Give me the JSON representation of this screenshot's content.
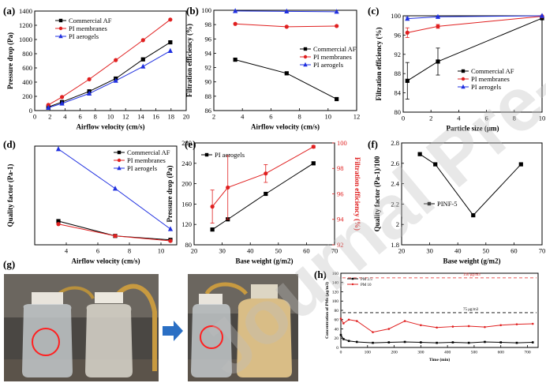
{
  "watermark": {
    "text": "Journal Pre-proof"
  },
  "chart_data": [
    {
      "panel": "a",
      "type": "line",
      "panel_label": "(a)",
      "xlabel": "Airflow velocity (cm/s)",
      "ylabel": "Pressure drop (Pa)",
      "xlim": [
        0,
        20
      ],
      "ylim": [
        0,
        1400
      ],
      "xticks": [
        0,
        2,
        4,
        6,
        8,
        10,
        12,
        14,
        16,
        18,
        20
      ],
      "yticks": [
        0,
        200,
        400,
        600,
        800,
        1000,
        1200,
        1400
      ],
      "legend_position": "top-left",
      "series": [
        {
          "name": "Commercial AF",
          "color": "#000000",
          "marker": "square",
          "x": [
            1.8,
            3.6,
            7.2,
            10.7,
            14.3,
            17.9
          ],
          "y": [
            50,
            120,
            270,
            450,
            720,
            960
          ]
        },
        {
          "name": "PI membranes",
          "color": "#e02020",
          "marker": "circle",
          "x": [
            1.8,
            3.6,
            7.2,
            10.7,
            14.3,
            17.9
          ],
          "y": [
            80,
            190,
            440,
            710,
            990,
            1280
          ]
        },
        {
          "name": "PI aerogels",
          "color": "#2030e0",
          "marker": "triangle",
          "x": [
            1.8,
            3.6,
            7.2,
            10.7,
            14.3,
            17.9
          ],
          "y": [
            40,
            100,
            240,
            420,
            620,
            840
          ]
        }
      ]
    },
    {
      "panel": "b",
      "type": "line",
      "panel_label": "(b)",
      "xlabel": "Airflow velocity (cm/s)",
      "ylabel": "Filtration efficiency (%)",
      "xlim": [
        2,
        12
      ],
      "ylim": [
        86,
        100
      ],
      "xticks": [
        2,
        4,
        6,
        8,
        10,
        12
      ],
      "yticks": [
        86,
        88,
        90,
        92,
        94,
        96,
        98,
        100
      ],
      "legend_position": "right",
      "series": [
        {
          "name": "Commercial AF",
          "color": "#000000",
          "marker": "square",
          "x": [
            3.5,
            7.1,
            10.6
          ],
          "y": [
            93.1,
            91.2,
            87.6
          ]
        },
        {
          "name": "PI membranes",
          "color": "#e02020",
          "marker": "circle",
          "x": [
            3.5,
            7.1,
            10.6
          ],
          "y": [
            98.1,
            97.7,
            97.8
          ]
        },
        {
          "name": "PI aerogels",
          "color": "#2030e0",
          "marker": "triangle",
          "x": [
            3.5,
            7.1,
            10.6
          ],
          "y": [
            99.9,
            99.85,
            99.8
          ]
        }
      ]
    },
    {
      "panel": "c",
      "type": "line",
      "panel_label": "(c)",
      "xlabel": "Particle size (μm)",
      "ylabel": "Filtration efficiency (%)",
      "xlim": [
        0,
        10
      ],
      "ylim": [
        80,
        100
      ],
      "xticks": [
        0,
        2,
        4,
        6,
        8,
        10
      ],
      "yticks": [
        80,
        84,
        88,
        92,
        96,
        100
      ],
      "legend_position": "right",
      "series": [
        {
          "name": "Commercial AF",
          "color": "#000000",
          "marker": "square",
          "x": [
            0.3,
            2.5,
            10
          ],
          "y": [
            86.5,
            90.5,
            99.5
          ],
          "err": [
            3.8,
            2.8,
            0.3
          ]
        },
        {
          "name": "PI membranes",
          "color": "#e02020",
          "marker": "circle",
          "x": [
            0.3,
            2.5,
            10
          ],
          "y": [
            96.5,
            97.8,
            99.9
          ],
          "err": [
            1.0,
            0.4,
            0.1
          ]
        },
        {
          "name": "PI aerogels",
          "color": "#2030e0",
          "marker": "triangle",
          "x": [
            0.3,
            2.5,
            10
          ],
          "y": [
            99.4,
            99.8,
            100.0
          ],
          "err": [
            0.3,
            0.1,
            0.0
          ]
        }
      ]
    },
    {
      "panel": "d",
      "type": "line",
      "panel_label": "(d)",
      "xlabel": "Airflow velocity (cm/s)",
      "ylabel": "Quality factor (Pa-1)",
      "xlim": [
        2,
        11
      ],
      "ylim": [
        0,
        0.1
      ],
      "xticks": [
        4,
        6,
        8,
        10
      ],
      "yticks": [],
      "legend_position": "top-right",
      "series": [
        {
          "name": "Commercial AF",
          "color": "#000000",
          "marker": "square",
          "x": [
            3.5,
            7.1,
            10.6
          ],
          "y": [
            0.024,
            0.009,
            0.005
          ]
        },
        {
          "name": "PI membranes",
          "color": "#e02020",
          "marker": "circle",
          "x": [
            3.5,
            7.1,
            10.6
          ],
          "y": [
            0.021,
            0.009,
            0.004
          ]
        },
        {
          "name": "PI aerogels",
          "color": "#2030e0",
          "marker": "triangle",
          "x": [
            3.5,
            7.1,
            10.6
          ],
          "y": [
            0.097,
            0.057,
            0.016
          ]
        }
      ]
    },
    {
      "panel": "e",
      "type": "line",
      "panel_label": "(e)",
      "xlabel": "Base weight (g/m2)",
      "ylabel": "Pressure drop (Pa)",
      "ylabel_right": "Filtration efficiency (%)",
      "xlim": [
        20,
        70
      ],
      "ylim": [
        80,
        280
      ],
      "ylim_right": [
        92,
        100
      ],
      "xticks": [
        20,
        30,
        40,
        50,
        60,
        70
      ],
      "yticks": [
        80,
        120,
        160,
        200,
        240,
        280
      ],
      "yticks_right": [
        92,
        94,
        96,
        98,
        100
      ],
      "legend_position": "top-left",
      "series": [
        {
          "name": "PI aerogels",
          "color": "#000000",
          "marker": "square",
          "axis": "left",
          "x": [
            26.5,
            32,
            45.5,
            62.5
          ],
          "y": [
            110,
            130,
            180,
            240
          ]
        },
        {
          "name": "",
          "color": "#e02020",
          "marker": "circle",
          "axis": "right",
          "x": [
            26.5,
            32,
            45.5,
            62.5
          ],
          "y": [
            95.0,
            96.5,
            97.6,
            99.7
          ],
          "err": [
            1.3,
            2.5,
            0.7,
            0.1
          ]
        }
      ]
    },
    {
      "panel": "f",
      "type": "line",
      "panel_label": "(f)",
      "xlabel": "Base weight (g/m2)",
      "ylabel": "Quality factor (Pa-1)/100",
      "xlim": [
        20,
        70
      ],
      "ylim": [
        1.8,
        2.8
      ],
      "xticks": [
        20,
        30,
        40,
        50,
        60,
        70
      ],
      "yticks": [
        1.8,
        2.0,
        2.2,
        2.4,
        2.6,
        2.8
      ],
      "legend_position": "left",
      "series": [
        {
          "name": "PINF-5",
          "color": "#000000",
          "marker": "square",
          "x": [
            26.5,
            32,
            45.5,
            62.5
          ],
          "y": [
            2.69,
            2.59,
            2.09,
            2.59
          ]
        }
      ]
    },
    {
      "panel": "h",
      "type": "line",
      "panel_label": "(h)",
      "xlabel": "Time (min)",
      "ylabel": "Concentration of PMs (μg/m3)",
      "xlim": [
        0,
        740
      ],
      "ylim": [
        0,
        160
      ],
      "xticks": [
        0,
        100,
        200,
        300,
        400,
        500,
        600,
        700
      ],
      "yticks": [
        0,
        20,
        40,
        60,
        80,
        100,
        120,
        140,
        160
      ],
      "legend_position": "top-left",
      "reference_lines": [
        {
          "label": "150 μg/m3",
          "y": 150,
          "color": "#e02020"
        },
        {
          "label": "75 μg/m3",
          "y": 75,
          "color": "#000000"
        }
      ],
      "series": [
        {
          "name": "PM 2.5",
          "color": "#000000",
          "marker": "square",
          "x": [
            0,
            10,
            30,
            60,
            120,
            180,
            240,
            300,
            360,
            420,
            480,
            540,
            600,
            660,
            720
          ],
          "y": [
            27,
            18,
            14,
            12,
            10,
            11,
            12,
            11,
            10,
            11,
            10,
            12,
            11,
            10,
            11
          ]
        },
        {
          "name": "PM 10",
          "color": "#e02020",
          "marker": "circle",
          "x": [
            0,
            10,
            30,
            60,
            120,
            180,
            240,
            300,
            360,
            420,
            480,
            540,
            600,
            660,
            720
          ],
          "y": [
            62,
            52,
            60,
            57,
            33,
            40,
            57,
            48,
            43,
            45,
            46,
            44,
            48,
            50,
            51
          ]
        }
      ]
    }
  ],
  "photo_panel": {
    "panel_label": "(g)"
  }
}
